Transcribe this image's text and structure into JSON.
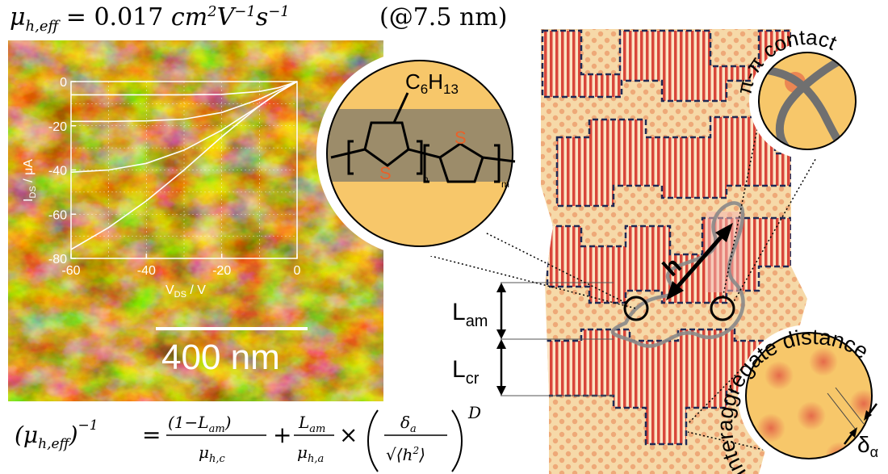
{
  "header": {
    "mobility_symbol": "μ",
    "mobility_sub": "h,eff",
    "mobility_value": "= 0.017",
    "unit_cm": "cm",
    "unit_V": "V",
    "unit_s": "s",
    "exp_2": "2",
    "exp_m1": "−1",
    "thickness_note": "(@7.5 nm)"
  },
  "afm": {
    "scale_bar_label": "400 nm",
    "colors": {
      "dark": "#1a0d00",
      "mid": "#8a5200",
      "bright": "#e8b84a"
    }
  },
  "chart_data": {
    "type": "line",
    "xlabel": "V",
    "xlabel_sub": "DS",
    "xlabel_unit": " / V",
    "ylabel": "I",
    "ylabel_sub": "DS",
    "ylabel_unit": " / μA",
    "xlim": [
      -60,
      0
    ],
    "ylim": [
      -80,
      0
    ],
    "xticks": [
      "-60",
      "-40",
      "-20",
      "0"
    ],
    "yticks": [
      "0",
      "-20",
      "-40",
      "-60",
      "-80"
    ],
    "series": [
      {
        "x": [
          -60,
          -50,
          -40,
          -30,
          -20,
          -10,
          -5,
          0
        ],
        "values": [
          -76,
          -66,
          -54,
          -40,
          -25,
          -11,
          -5,
          0
        ]
      },
      {
        "x": [
          -60,
          -50,
          -40,
          -30,
          -20,
          -10,
          -5,
          0
        ],
        "values": [
          -41,
          -40,
          -37,
          -31,
          -22,
          -11,
          -5,
          0
        ]
      },
      {
        "x": [
          -60,
          -50,
          -40,
          -30,
          -20,
          -10,
          -5,
          0
        ],
        "values": [
          -18,
          -18,
          -17.8,
          -17,
          -14,
          -8,
          -4,
          0
        ]
      },
      {
        "x": [
          -60,
          -50,
          -40,
          -30,
          -20,
          -10,
          -5,
          0
        ],
        "values": [
          -6,
          -6,
          -6,
          -6,
          -5.8,
          -4.5,
          -2.8,
          0
        ]
      }
    ],
    "grid": true
  },
  "molecule": {
    "side_chain": "C",
    "side_chain_sub1": "6",
    "side_chain_h": "H",
    "side_chain_sub2": "13",
    "sulfur": "S",
    "index_n": "n",
    "index_m": "m"
  },
  "diagram": {
    "label_h": "h",
    "label_Lam": "L",
    "label_Lam_sub": "am",
    "label_Lcr": "L",
    "label_Lcr_sub": "cr",
    "pipi_label": "π-π contact",
    "interagg_label": "Interaggregate distance",
    "delta_label": "δ",
    "delta_sub": "α",
    "colors": {
      "crystal": "#d9463a",
      "amorphous": "#f6d9a8",
      "dot": "#e8a070",
      "border": "#1f2a55",
      "chain": "#7a7a7a",
      "disc": "#f7c76a"
    }
  },
  "bottom_equation": {
    "lhs": "(μ",
    "lhs_sub": "h,eff",
    "lhs_close": ")",
    "lhs_exp": "−1",
    "eq": "=",
    "frac1_num": "(1−L",
    "frac1_num_sub": "am",
    "frac1_num_close": ")",
    "frac1_den": "μ",
    "frac1_den_sub": "h,c",
    "plus": "+",
    "frac2_num": "L",
    "frac2_num_sub": "am",
    "frac2_den": "μ",
    "frac2_den_sub": "h,a",
    "times": "×",
    "frac3_num": "δ",
    "frac3_num_sub": "a",
    "frac3_den": "√⟨h",
    "frac3_den_exp": "2",
    "frac3_den_close": "⟩",
    "exponent": "D"
  }
}
